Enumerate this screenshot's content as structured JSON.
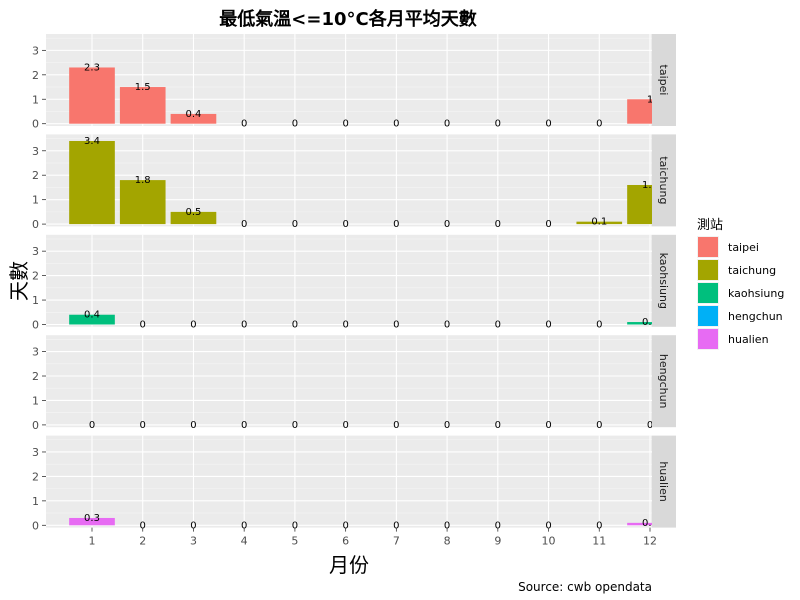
{
  "chart_data": {
    "type": "bar",
    "title": "最低氣溫<=10°C各月平均天數",
    "xlabel": "月份",
    "ylabel": "天數",
    "caption": "Source: cwb opendata",
    "categories": [
      "1",
      "2",
      "3",
      "4",
      "5",
      "6",
      "7",
      "8",
      "9",
      "10",
      "11",
      "12"
    ],
    "ylim": [
      0,
      3.6
    ],
    "yticks": [
      0,
      1,
      2,
      3
    ],
    "facet": "rows",
    "series": [
      {
        "name": "taipei",
        "color": "#F8766D",
        "values": [
          2.3,
          1.5,
          0.4,
          0,
          0,
          0,
          0,
          0,
          0,
          0,
          0,
          1
        ]
      },
      {
        "name": "taichung",
        "color": "#A3A500",
        "values": [
          3.4,
          1.8,
          0.5,
          0,
          0,
          0,
          0,
          0,
          0,
          0,
          0.1,
          1.6
        ]
      },
      {
        "name": "kaohsiung",
        "color": "#00BF7D",
        "values": [
          0.4,
          0,
          0,
          0,
          0,
          0,
          0,
          0,
          0,
          0,
          0,
          0.1
        ]
      },
      {
        "name": "hengchun",
        "color": "#00B0F6",
        "values": [
          0,
          0,
          0,
          0,
          0,
          0,
          0,
          0,
          0,
          0,
          0,
          0
        ]
      },
      {
        "name": "hualien",
        "color": "#E76BF3",
        "values": [
          0.3,
          0,
          0,
          0,
          0,
          0,
          0,
          0,
          0,
          0,
          0,
          0.1
        ]
      }
    ],
    "legend": {
      "title": "測站",
      "position": "right"
    },
    "grid": true
  }
}
